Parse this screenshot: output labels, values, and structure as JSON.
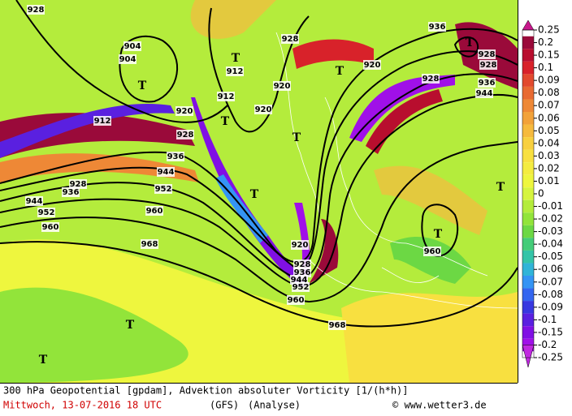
{
  "header": {
    "title": "300 hPa Geopotential [gpdam], Advektion absoluter Vorticity [1/(h*h)]",
    "date": "Mittwoch, 13-07-2016  18 UTC",
    "model": "(GFS)",
    "run": "(Analyse)",
    "credit": "© www.wetter3.de"
  },
  "colorbar": [
    {
      "label": "0.25",
      "color": "#c8188c"
    },
    {
      "label": "0.2",
      "color": "#9a0a3a"
    },
    {
      "label": "0.15",
      "color": "#b80e2e"
    },
    {
      "label": "0.1",
      "color": "#d8222a"
    },
    {
      "label": "0.09",
      "color": "#e24a2e"
    },
    {
      "label": "0.08",
      "color": "#e86a32"
    },
    {
      "label": "0.07",
      "color": "#ee8836"
    },
    {
      "label": "0.06",
      "color": "#f2a23a"
    },
    {
      "label": "0.05",
      "color": "#f6ba3e"
    },
    {
      "label": "0.04",
      "color": "#f8d040"
    },
    {
      "label": "0.03",
      "color": "#f8e040"
    },
    {
      "label": "0.02",
      "color": "#f4ec40"
    },
    {
      "label": "0.01",
      "color": "#eef63e"
    },
    {
      "label": "0",
      "color": "#d6f43e"
    },
    {
      "label": "-0.01",
      "color": "#b4ec3c"
    },
    {
      "label": "-0.02",
      "color": "#92e43a"
    },
    {
      "label": "-0.03",
      "color": "#6cd844"
    },
    {
      "label": "-0.04",
      "color": "#44cc78"
    },
    {
      "label": "-0.05",
      "color": "#34c4a8"
    },
    {
      "label": "-0.06",
      "color": "#30b4d8"
    },
    {
      "label": "-0.07",
      "color": "#3494f4"
    },
    {
      "label": "-0.08",
      "color": "#3466f0"
    },
    {
      "label": "-0.09",
      "color": "#3838e0"
    },
    {
      "label": "-0.1",
      "color": "#5a20e0"
    },
    {
      "label": "-0.15",
      "color": "#8010e4"
    },
    {
      "label": "-0.2",
      "color": "#a010e8"
    },
    {
      "label": "-0.25",
      "color": "#c028e0"
    }
  ],
  "contour_labels": [
    "928",
    "904",
    "904",
    "912",
    "912",
    "912",
    "920",
    "920",
    "920",
    "928",
    "928",
    "928",
    "936",
    "936",
    "944",
    "952",
    "960",
    "968",
    "928",
    "936",
    "944",
    "952",
    "960",
    "920",
    "928",
    "936",
    "944",
    "952",
    "960",
    "968",
    "960",
    "920",
    "928",
    "928",
    "936",
    "944"
  ],
  "pressure_systems": [
    "T",
    "T",
    "T",
    "T",
    "T",
    "T",
    "T",
    "T",
    "T",
    "T",
    "T"
  ]
}
